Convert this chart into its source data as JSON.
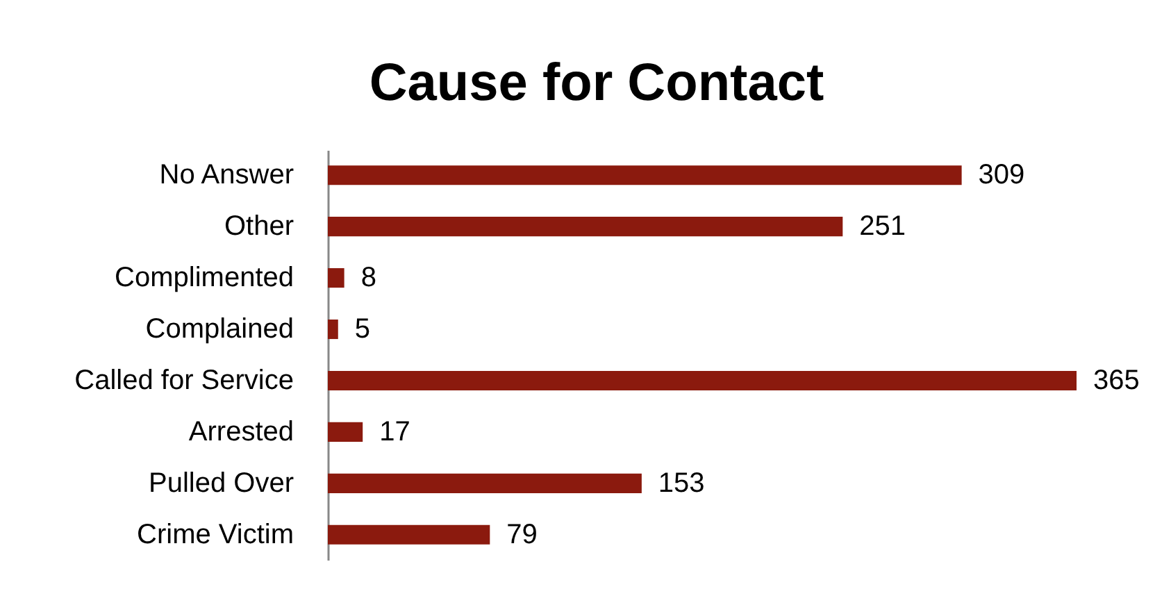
{
  "chart_data": {
    "type": "bar",
    "orientation": "horizontal",
    "title": "Cause for Contact",
    "categories": [
      "No Answer",
      "Other",
      "Complimented",
      "Complained",
      "Called for Service",
      "Arrested",
      "Pulled Over",
      "Crime Victim"
    ],
    "values": [
      309,
      251,
      8,
      5,
      365,
      17,
      153,
      79
    ],
    "color": "#8b1a0e",
    "data_labels": true
  }
}
